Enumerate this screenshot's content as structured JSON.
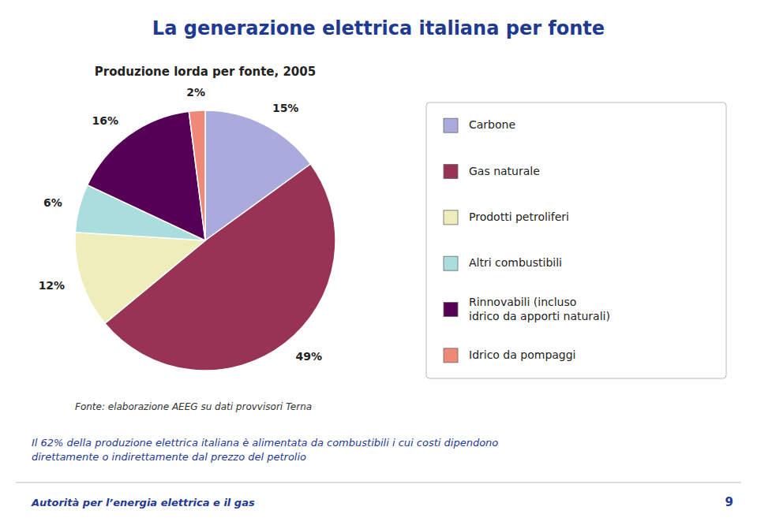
{
  "chart_data": {
    "type": "pie",
    "title": "La generazione elettrica italiana per fonte",
    "subtitle": "Produzione lorda per fonte, 2005",
    "categories": [
      "Carbone",
      "Gas naturale",
      "Prodotti petroliferi",
      "Altri combustibili",
      "Rinnovabili (incluso\nidrico da apporti naturali)",
      "Idrico da pompaggi"
    ],
    "values": [
      15,
      49,
      12,
      6,
      16,
      2
    ],
    "value_labels": [
      "15%",
      "49%",
      "12%",
      "6%",
      "16%",
      "2%"
    ],
    "data_labels": true,
    "colors": [
      "#aaaadd",
      "#993355",
      "#eeeebb",
      "#aadddd",
      "#550055",
      "#ee8877"
    ],
    "legend": "right",
    "annotations": [
      "Fonte: elaborazione AEEG su dati provvisori Terna",
      "Il 62%  della produzione elettrica italiana è alimentata da combustibili i cui costi dipendono\ndirettamente o indirettamente dal prezzo del petrolio",
      "Autorità per l’energia elettrica e il gas",
      "9"
    ]
  }
}
